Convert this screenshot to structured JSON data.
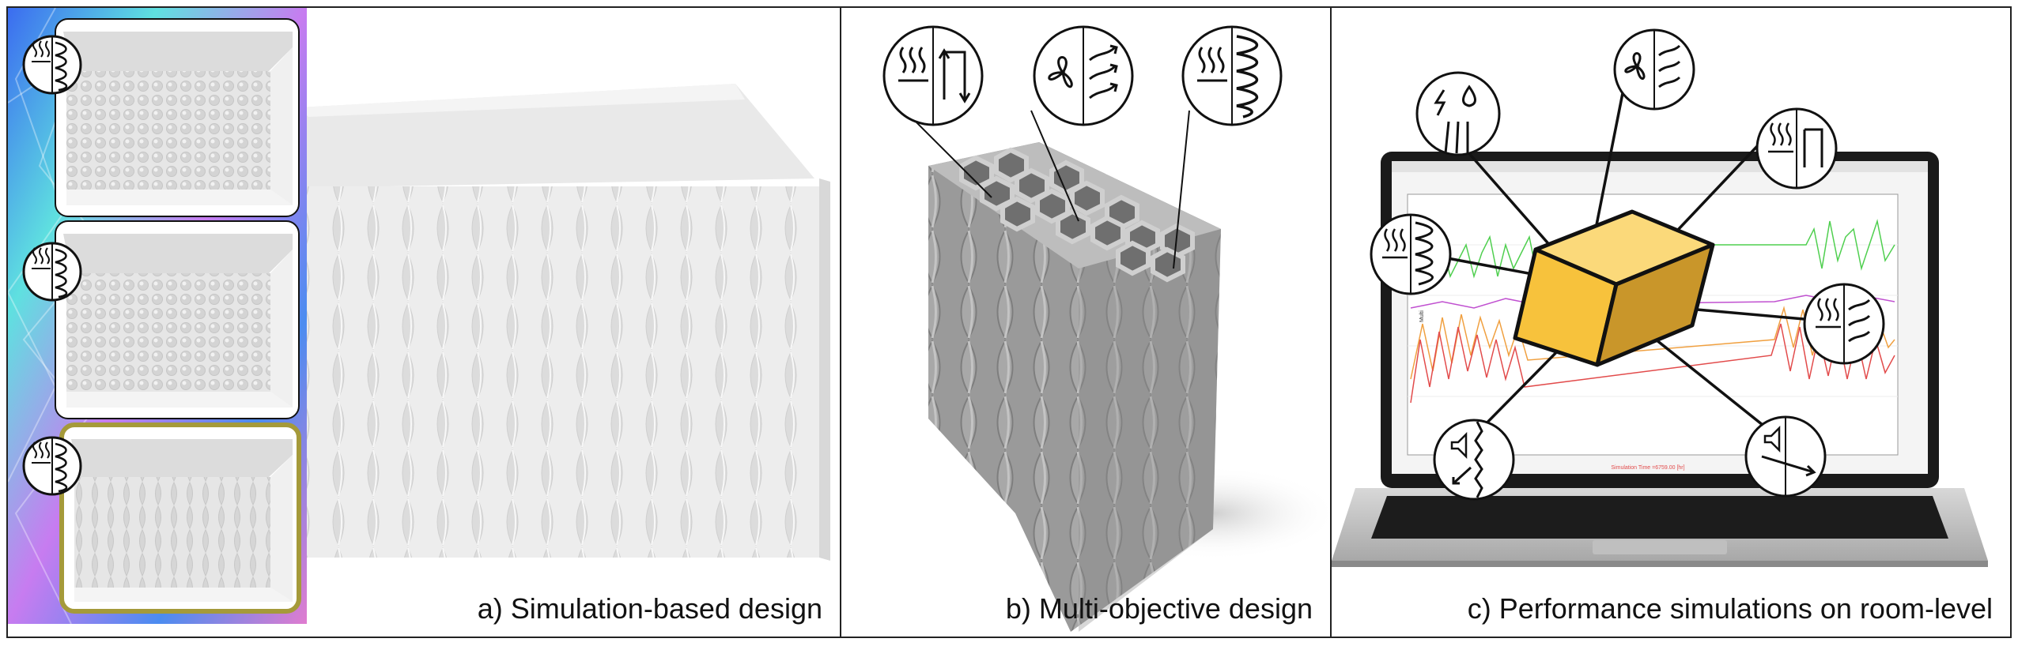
{
  "panels": [
    {
      "caption": "a) Simulation-based design"
    },
    {
      "caption": "b) Multi-objective design"
    },
    {
      "caption": "c) Performance simulations on room-level"
    }
  ],
  "laptop_screen": {
    "footer_label": "Simulation Time =6759.00 [hr]",
    "y_axis_label": "Multi"
  },
  "colors": {
    "cube_front": "#f7c23c",
    "cube_top": "#fbd97a",
    "cube_side": "#c9962a",
    "highlight_frame": "#a59a3a",
    "screen_green": "#4fcf4f",
    "screen_red": "#e24b4b",
    "screen_orange": "#f0a040",
    "screen_purple": "#c050d0"
  },
  "icons": [
    "heat-wavy-lines-icon",
    "insulation-coil-icon",
    "heat-circulation-icon",
    "fan-airflow-icon",
    "electricity-water-icon",
    "acoustic-icon",
    "acoustic-transmission-icon"
  ]
}
